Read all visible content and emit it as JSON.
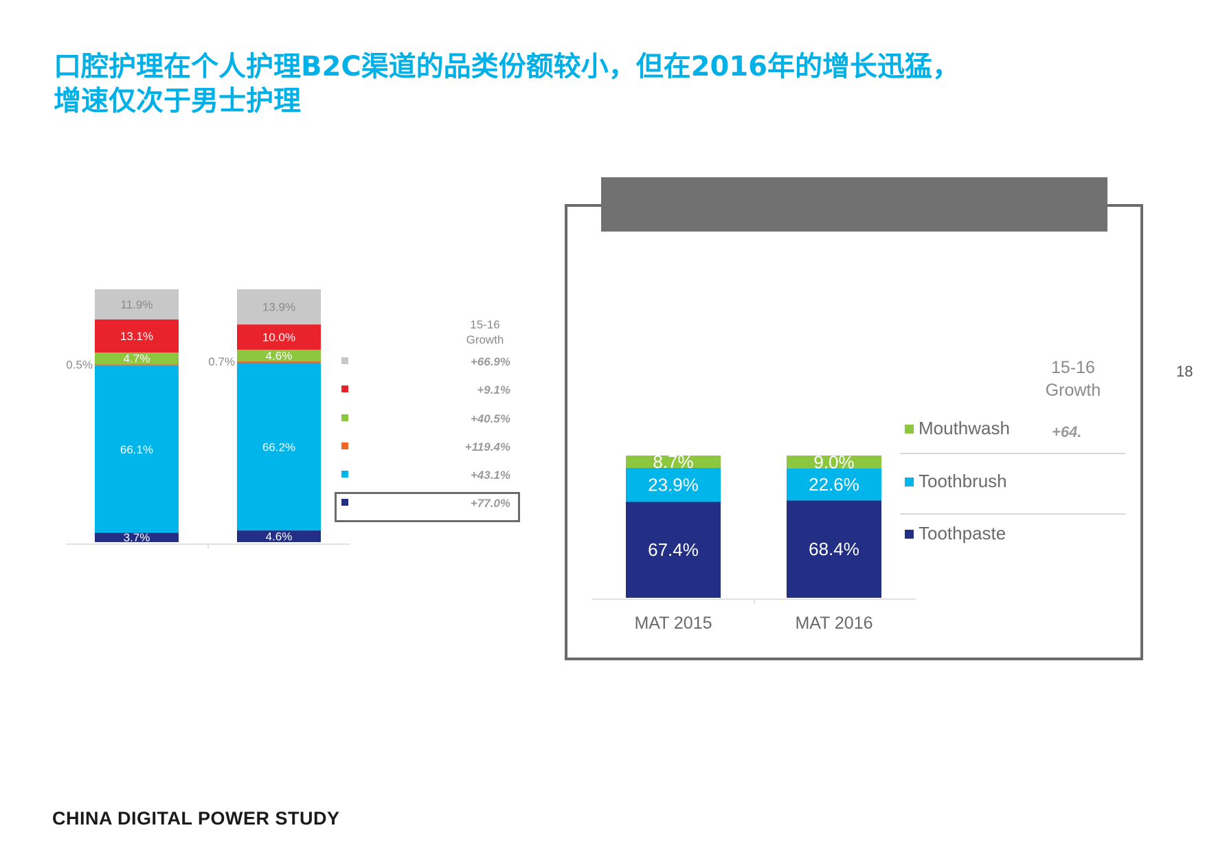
{
  "title_line1": "口腔护理在个人护理B2C渠道的品类份额较小，但在2016年的增长迅猛，",
  "title_line2": "增速仅次于男士护理",
  "footer": "CHINA DIGITAL POWER STUDY",
  "page_number": "18",
  "colors": {
    "gray": "#c8c8c8",
    "red": "#e8232b",
    "green": "#8dc63f",
    "orange": "#f26522",
    "cyan": "#00b5ea",
    "navy": "#232f84",
    "title": "#00b0e6"
  },
  "chart_data": [
    {
      "type": "bar",
      "stacked": true,
      "categories": [
        "",
        ""
      ],
      "series": [
        {
          "color": "#232f84",
          "values": [
            3.7,
            4.6
          ],
          "labels": [
            "3.7%",
            "4.6%"
          ]
        },
        {
          "color": "#00b5ea",
          "values": [
            66.1,
            66.2
          ],
          "labels": [
            "66.1%",
            "66.2%"
          ]
        },
        {
          "color": "#f26522",
          "values": [
            0.5,
            0.7
          ],
          "labels": [
            "0.5%",
            "0.7%"
          ]
        },
        {
          "color": "#8dc63f",
          "values": [
            4.7,
            4.6
          ],
          "labels": [
            "4.7%",
            "4.6%"
          ]
        },
        {
          "color": "#e8232b",
          "values": [
            13.1,
            10.0
          ],
          "labels": [
            "13.1%",
            "10.0%"
          ]
        },
        {
          "color": "#c8c8c8",
          "values": [
            11.9,
            13.9
          ],
          "labels": [
            "11.9%",
            "13.9%"
          ]
        }
      ],
      "growth_header": [
        "15-16",
        "Growth"
      ],
      "growth": [
        {
          "color": "#c8c8c8",
          "value": "+66.9%"
        },
        {
          "color": "#e8232b",
          "value": "+9.1%"
        },
        {
          "color": "#8dc63f",
          "value": "+40.5%"
        },
        {
          "color": "#f26522",
          "value": "+119.4%"
        },
        {
          "color": "#00b5ea",
          "value": "+43.1%"
        },
        {
          "color": "#232f84",
          "value": "+77.0%",
          "highlighted": true
        }
      ]
    },
    {
      "type": "bar",
      "stacked": true,
      "categories": [
        "MAT 2015",
        "MAT 2016"
      ],
      "series": [
        {
          "name": "Toothpaste",
          "color": "#232f84",
          "values": [
            67.4,
            68.4
          ],
          "labels": [
            "67.4%",
            "68.4%"
          ]
        },
        {
          "name": "Toothbrush",
          "color": "#00b5ea",
          "values": [
            23.9,
            22.6
          ],
          "labels": [
            "23.9%",
            "22.6%"
          ]
        },
        {
          "name": "Mouthwash",
          "color": "#8dc63f",
          "values": [
            8.7,
            9.0
          ],
          "labels": [
            "8.7%",
            "9.0%"
          ]
        }
      ],
      "growth_header": [
        "15-16",
        "Growth"
      ],
      "growth": [
        {
          "name": "Mouthwash",
          "value": "+64."
        }
      ],
      "legend": [
        "Mouthwash",
        "Toothbrush",
        "Toothpaste"
      ]
    }
  ]
}
